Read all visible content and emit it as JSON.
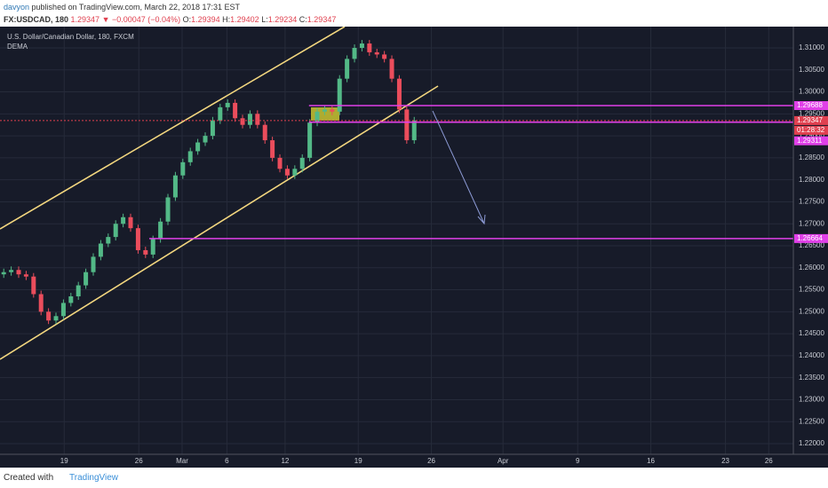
{
  "header": {
    "line1_user": "davyon",
    "line1_rest": "published on TradingView.com, March 22, 2018 17:31 EST",
    "symbol": "FX:USDCAD, 180",
    "last": "1.29347",
    "change": "▼ −0.00047 (−0.04%)",
    "o_label": "O:",
    "o": "1.29394",
    "h_label": "H:",
    "h": "1.29402",
    "l_label": "L:",
    "l": "1.29234",
    "c_label": "C:",
    "c": "1.29347"
  },
  "footer": {
    "created": "Created with",
    "brand": "TradingView"
  },
  "chart_data": {
    "type": "candlestick",
    "title": "U.S. Dollar/Canadian Dollar, 180, FXCM",
    "indicator": "DEMA",
    "up_color": "#53b987",
    "down_color": "#eb4d5c",
    "grid": true,
    "xlim": [
      0,
      53.15
    ],
    "ylim": [
      1.21758,
      1.31484
    ],
    "xticks": [
      {
        "value": 4.3,
        "label": "19"
      },
      {
        "value": 9.3,
        "label": "26"
      },
      {
        "value": 12.2,
        "label": "Mar"
      },
      {
        "value": 15.2,
        "label": "6"
      },
      {
        "value": 19.1,
        "label": "12"
      },
      {
        "value": 24.0,
        "label": "19"
      },
      {
        "value": 28.9,
        "label": "26"
      },
      {
        "value": 33.7,
        "label": "Apr"
      },
      {
        "value": 38.7,
        "label": "9"
      },
      {
        "value": 43.6,
        "label": "16"
      },
      {
        "value": 48.6,
        "label": "23"
      },
      {
        "value": 51.5,
        "label": "26"
      }
    ],
    "yticks": [
      {
        "value": 1.22,
        "label": "1.22000"
      },
      {
        "value": 1.225,
        "label": "1.22500"
      },
      {
        "value": 1.23,
        "label": "1.23000"
      },
      {
        "value": 1.235,
        "label": "1.23500"
      },
      {
        "value": 1.24,
        "label": "1.24000"
      },
      {
        "value": 1.245,
        "label": "1.24500"
      },
      {
        "value": 1.25,
        "label": "1.25000"
      },
      {
        "value": 1.255,
        "label": "1.25500"
      },
      {
        "value": 1.26,
        "label": "1.26000"
      },
      {
        "value": 1.265,
        "label": "1.26500"
      },
      {
        "value": 1.27,
        "label": "1.27000"
      },
      {
        "value": 1.275,
        "label": "1.27500"
      },
      {
        "value": 1.28,
        "label": "1.28000"
      },
      {
        "value": 1.285,
        "label": "1.28500"
      },
      {
        "value": 1.29,
        "label": "1.29000"
      },
      {
        "value": 1.295,
        "label": "1.29500"
      },
      {
        "value": 1.3,
        "label": "1.30000"
      },
      {
        "value": 1.305,
        "label": "1.30500"
      },
      {
        "value": 1.31,
        "label": "1.31000"
      }
    ],
    "x": [
      0.25,
      0.75,
      1.25,
      1.75,
      2.25,
      2.75,
      3.25,
      3.75,
      4.25,
      4.75,
      5.25,
      5.75,
      6.25,
      6.75,
      7.25,
      7.75,
      8.25,
      8.75,
      9.25,
      9.75,
      10.25,
      10.75,
      11.25,
      11.75,
      12.25,
      12.75,
      13.25,
      13.75,
      14.25,
      14.75,
      15.25,
      15.75,
      16.25,
      16.75,
      17.25,
      17.75,
      18.25,
      18.75,
      19.25,
      19.75,
      20.25,
      20.75,
      21.25,
      21.75,
      22.25,
      22.75,
      23.25,
      23.75,
      24.25,
      24.75,
      25.25,
      25.75,
      26.25,
      26.75,
      27.25,
      27.75
    ],
    "open": [
      1.2585,
      1.259,
      1.2595,
      1.2585,
      1.258,
      1.254,
      1.25,
      1.248,
      1.249,
      1.252,
      1.2535,
      1.256,
      1.259,
      1.2625,
      1.2655,
      1.267,
      1.27,
      1.2715,
      1.269,
      1.264,
      1.263,
      1.2665,
      1.2705,
      1.276,
      1.281,
      1.284,
      1.2865,
      1.2885,
      1.29,
      1.2935,
      1.2965,
      1.2975,
      1.294,
      1.2925,
      1.295,
      1.2925,
      1.289,
      1.285,
      1.2825,
      1.281,
      1.2825,
      1.285,
      1.293,
      1.2955,
      1.296,
      1.2955,
      1.303,
      1.3075,
      1.31,
      1.311,
      1.309,
      1.3085,
      1.3075,
      1.303,
      1.296,
      1.289
    ],
    "high": [
      1.2598,
      1.2603,
      1.2603,
      1.2593,
      1.2588,
      1.2548,
      1.2508,
      1.2498,
      1.2528,
      1.2543,
      1.2568,
      1.2598,
      1.2633,
      1.2663,
      1.2678,
      1.2708,
      1.2723,
      1.2723,
      1.2698,
      1.2648,
      1.2673,
      1.2713,
      1.2768,
      1.2818,
      1.2848,
      1.2873,
      1.2893,
      1.2908,
      1.2943,
      1.2973,
      1.2983,
      1.2983,
      1.2948,
      1.2958,
      1.2958,
      1.2933,
      1.2898,
      1.2858,
      1.2833,
      1.2833,
      1.2858,
      1.2938,
      1.2963,
      1.2968,
      1.2968,
      1.3038,
      1.3083,
      1.3108,
      1.3118,
      1.3118,
      1.3098,
      1.3093,
      1.3083,
      1.3038,
      1.2968,
      1.2943
    ],
    "low": [
      1.2577,
      1.2582,
      1.2577,
      1.2572,
      1.2532,
      1.2492,
      1.2472,
      1.2472,
      1.2482,
      1.2512,
      1.2527,
      1.2552,
      1.2582,
      1.2617,
      1.2647,
      1.2662,
      1.2692,
      1.2682,
      1.2632,
      1.2622,
      1.2622,
      1.2657,
      1.2697,
      1.2752,
      1.2802,
      1.2832,
      1.2857,
      1.2877,
      1.2892,
      1.2927,
      1.2957,
      1.2932,
      1.2917,
      1.2917,
      1.2917,
      1.2882,
      1.2842,
      1.2817,
      1.2802,
      1.2802,
      1.2817,
      1.2842,
      1.2922,
      1.2947,
      1.2947,
      1.2947,
      1.3022,
      1.3067,
      1.3092,
      1.3082,
      1.3077,
      1.3067,
      1.3022,
      1.2952,
      1.2882,
      1.2882
    ],
    "close": [
      1.259,
      1.2595,
      1.2585,
      1.258,
      1.254,
      1.25,
      1.248,
      1.249,
      1.252,
      1.2535,
      1.256,
      1.259,
      1.2625,
      1.2655,
      1.267,
      1.27,
      1.2715,
      1.269,
      1.264,
      1.263,
      1.2665,
      1.2705,
      1.276,
      1.281,
      1.284,
      1.2865,
      1.2885,
      1.29,
      1.2935,
      1.2965,
      1.2975,
      1.294,
      1.2925,
      1.295,
      1.2925,
      1.289,
      1.285,
      1.2825,
      1.281,
      1.2825,
      1.285,
      1.293,
      1.2955,
      1.296,
      1.2955,
      1.303,
      1.3075,
      1.31,
      1.311,
      1.309,
      1.3085,
      1.3075,
      1.303,
      1.296,
      1.289,
      1.2935
    ],
    "levels": [
      {
        "value": 1.29688,
        "color": "#e040e8",
        "start": 20.7
      },
      {
        "value": 1.29311,
        "color": "#e040e8",
        "start": 20.7
      },
      {
        "value": 1.26664,
        "color": "#e040e8",
        "start": 10.0
      },
      {
        "value": 1.29347,
        "color": "#e0404f",
        "start": 0,
        "countdown": "01:28:32"
      }
    ]
  }
}
